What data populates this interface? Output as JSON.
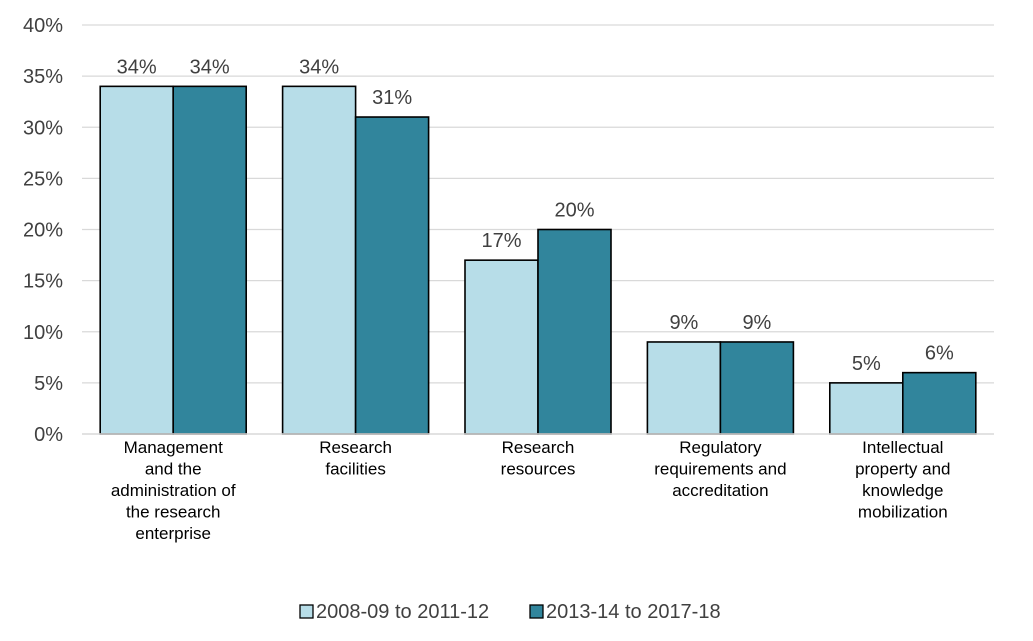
{
  "chart_data": {
    "type": "bar",
    "categories": [
      "Management and the administration of the research enterprise",
      "Research facilities",
      "Research resources",
      "Regulatory requirements and accreditation",
      "Intellectual property and knowledge mobilization"
    ],
    "category_lines": [
      [
        "Management",
        "and the",
        "administration of",
        "the research",
        "enterprise"
      ],
      [
        "Research",
        "facilities"
      ],
      [
        "Research",
        "resources"
      ],
      [
        "Regulatory",
        "requirements and",
        "accreditation"
      ],
      [
        "Intellectual",
        "property and",
        "knowledge",
        "mobilization"
      ]
    ],
    "series": [
      {
        "name": "2008-09 to 2011-12",
        "values": [
          34,
          34,
          17,
          9,
          5
        ],
        "labels": [
          "34%",
          "34%",
          "17%",
          "9%",
          "5%"
        ],
        "color": "#b7dde8"
      },
      {
        "name": "2013-14 to 2017-18",
        "values": [
          34,
          31,
          20,
          9,
          6
        ],
        "labels": [
          "34%",
          "31%",
          "20%",
          "9%",
          "6%"
        ],
        "color": "#31859c"
      }
    ],
    "ylim": [
      0,
      40
    ],
    "yticks": [
      0,
      5,
      10,
      15,
      20,
      25,
      30,
      35,
      40
    ],
    "ytick_labels": [
      "0%",
      "5%",
      "10%",
      "15%",
      "20%",
      "25%",
      "30%",
      "35%",
      "40%"
    ],
    "grid": true,
    "legend_position": "bottom",
    "title": "",
    "xlabel": "",
    "ylabel": ""
  }
}
